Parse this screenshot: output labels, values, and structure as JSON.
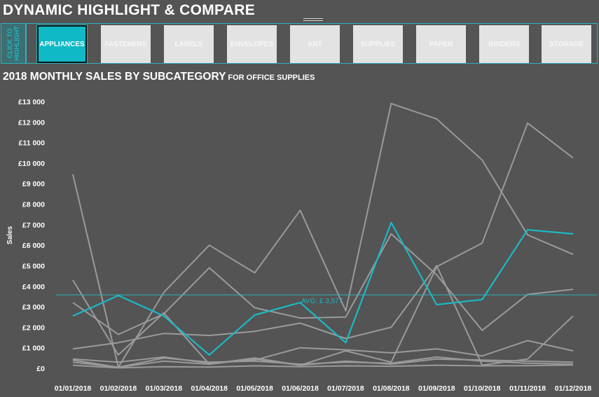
{
  "dashboard": {
    "title": "DYNAMIC HIGHLIGHT & COMPARE"
  },
  "nav": {
    "side_label": "CLICK TO HIGHLIGHT",
    "items": [
      {
        "label": "APPLIANCES",
        "active": true
      },
      {
        "label": "FASTENERS",
        "active": false
      },
      {
        "label": "LABELS",
        "active": false
      },
      {
        "label": "ENVELOPES",
        "active": false
      },
      {
        "label": "ART",
        "active": false
      },
      {
        "label": "SUPPLIES",
        "active": false
      },
      {
        "label": "PAPER",
        "active": false
      },
      {
        "label": "BINDERS",
        "active": false
      },
      {
        "label": "STORAGE",
        "active": false
      }
    ]
  },
  "colors": {
    "background": "#545454",
    "highlight": "#1bb9c4",
    "others": "#9a9a9a",
    "accent": "#2bb3bd"
  },
  "chart_data": {
    "type": "line",
    "title": "2018 MONTHLY SALES BY SUBCATEGORY",
    "subtitle": "FOR OFFICE SUPPLIES",
    "xlabel": "",
    "ylabel": "Sales",
    "ylim": [
      0,
      13000
    ],
    "yticks": [
      0,
      1000,
      2000,
      3000,
      4000,
      5000,
      6000,
      7000,
      8000,
      9000,
      10000,
      11000,
      12000,
      13000
    ],
    "ytick_labels": [
      "£0",
      "£1 000",
      "£2 000",
      "£3 000",
      "£4 000",
      "£5 000",
      "£6 000",
      "£7 000",
      "£8 000",
      "£9 000",
      "£10 000",
      "£11 000",
      "£12 000",
      "£13 000"
    ],
    "categories": [
      "01/01/2018",
      "01/02/2018",
      "01/03/2018",
      "01/04/2018",
      "01/05/2018",
      "01/06/2018",
      "01/07/2018",
      "01/08/2018",
      "01/09/2018",
      "01/10/2018",
      "01/11/2018",
      "01/12/2018"
    ],
    "grid": false,
    "legend": "none",
    "highlight_series": "APPLIANCES",
    "series": [
      {
        "name": "APPLIANCES",
        "values": [
          2550,
          3550,
          2550,
          650,
          2600,
          3200,
          1250,
          7100,
          3100,
          3350,
          6750,
          6550
        ]
      },
      {
        "name": "FASTENERS",
        "values": [
          150,
          20,
          80,
          60,
          120,
          80,
          120,
          100,
          150,
          120,
          130,
          160
        ]
      },
      {
        "name": "LABELS",
        "values": [
          400,
          50,
          350,
          200,
          450,
          150,
          350,
          200,
          450,
          400,
          350,
          300
        ]
      },
      {
        "name": "ENVELOPES",
        "values": [
          300,
          50,
          500,
          300,
          350,
          200,
          300,
          250,
          550,
          350,
          250,
          200
        ]
      },
      {
        "name": "ART",
        "values": [
          450,
          300,
          550,
          250,
          400,
          1000,
          900,
          750,
          950,
          600,
          1350,
          850
        ]
      },
      {
        "name": "SUPPLIES",
        "values": [
          950,
          1250,
          1700,
          1600,
          1800,
          2200,
          1450,
          2000,
          5000,
          150,
          450,
          2550
        ]
      },
      {
        "name": "PAPER",
        "values": [
          3200,
          1650,
          2650,
          4900,
          2950,
          2450,
          2500,
          6550,
          4550,
          1850,
          3600,
          3850
        ]
      },
      {
        "name": "BINDERS",
        "values": [
          9450,
          50,
          3700,
          6000,
          4650,
          7700,
          2800,
          12900,
          12150,
          10150,
          6500,
          5550
        ]
      },
      {
        "name": "STORAGE",
        "values": [
          4300,
          650,
          2700,
          200,
          500,
          150,
          850,
          300,
          4950,
          6100,
          11950,
          10250
        ]
      }
    ],
    "reference_line": {
      "label": "AVG: £ 3,577",
      "value": 3577
    }
  }
}
